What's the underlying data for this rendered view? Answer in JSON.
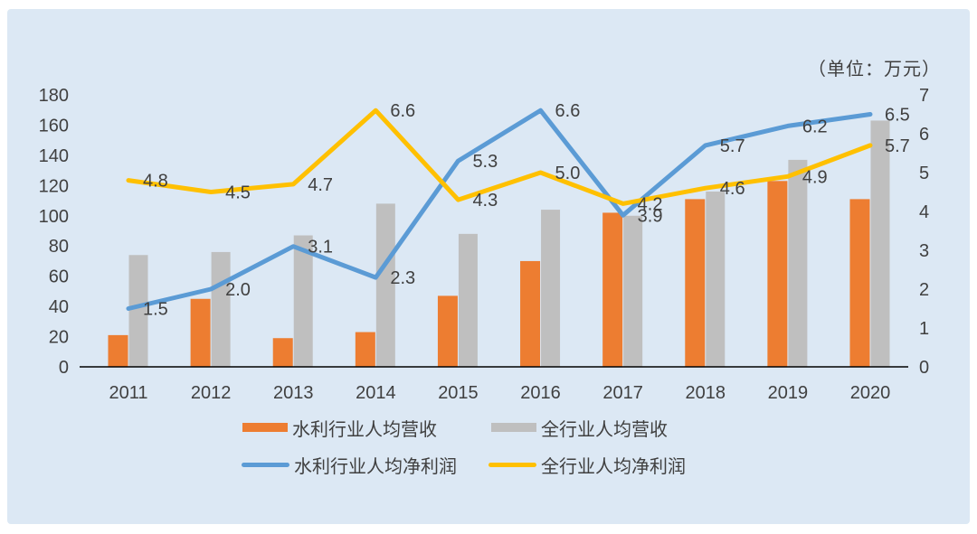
{
  "unit_label": "（单位：万元）",
  "colors": {
    "panel_background": "#DCE8F4",
    "axis_line": "#000000",
    "label_text": "#404040",
    "water_revenue_orange": "#ED7D31",
    "all_industry_revenue_gray": "#BFBFBF",
    "water_profit_blue": "#5B9BD5",
    "all_industry_profit_yellow": "#FFC000"
  },
  "chart_data": {
    "type": "bar",
    "subtype": "combo-bar-line-dual-axis",
    "categories": [
      "2011",
      "2012",
      "2013",
      "2014",
      "2015",
      "2016",
      "2017",
      "2018",
      "2019",
      "2020"
    ],
    "series": [
      {
        "name": "水利行业人均营收",
        "kind": "bar",
        "axis": "left",
        "color": "#ED7D31",
        "values": [
          21,
          45,
          19,
          23,
          47,
          70,
          102,
          111,
          123,
          111
        ]
      },
      {
        "name": "全行业人均营收",
        "kind": "bar",
        "axis": "left",
        "color": "#BFBFBF",
        "values": [
          74,
          76,
          87,
          108,
          88,
          104,
          100,
          116,
          137,
          163
        ]
      },
      {
        "name": "水利行业人均净利润",
        "kind": "line",
        "axis": "right",
        "color": "#5B9BD5",
        "values": [
          1.5,
          2.0,
          3.1,
          2.3,
          5.3,
          6.6,
          3.9,
          5.7,
          6.2,
          6.5
        ],
        "labels": [
          "1.5",
          "2.0",
          "3.1",
          "2.3",
          "5.3",
          "6.6",
          "3.9",
          "5.7",
          "6.2",
          "6.5"
        ]
      },
      {
        "name": "全行业人均净利润",
        "kind": "line",
        "axis": "right",
        "color": "#FFC000",
        "values": [
          4.8,
          4.5,
          4.7,
          6.6,
          4.3,
          5.0,
          4.2,
          4.6,
          4.9,
          5.7
        ],
        "labels": [
          "4.8",
          "4.5",
          "4.7",
          "6.6",
          "4.3",
          "5.0",
          "4.2",
          "4.6",
          "4.9",
          "5.7"
        ]
      }
    ],
    "left_axis": {
      "ticks": [
        0,
        20,
        40,
        60,
        80,
        100,
        120,
        140,
        160,
        180
      ],
      "min": 0,
      "max": 180
    },
    "right_axis": {
      "ticks": [
        0,
        1,
        2,
        3,
        4,
        5,
        6,
        7
      ],
      "min": 0,
      "max": 7
    },
    "grid": false,
    "legend_position": "bottom",
    "title": ""
  }
}
